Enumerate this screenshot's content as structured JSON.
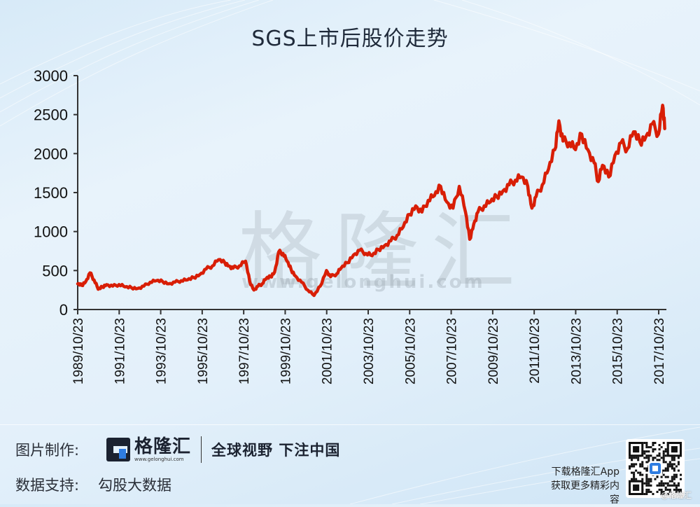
{
  "title": "SGS上市后股价走势",
  "watermark": {
    "text": "格隆汇",
    "url": "www.gelonghui.com"
  },
  "footer": {
    "made_by_label": "图片制作:",
    "brand_name": "格隆汇",
    "brand_url": "www.gelonghui.com",
    "slogan": "全球视野 下注中国",
    "data_label": "数据支持:",
    "data_source": "勾股大数据",
    "app_line1": "下载格隆汇App",
    "app_line2": "获取更多精彩内容",
    "credit": "@格隆汇",
    "qr_icon": "qr-code-icon"
  },
  "colors": {
    "line": "#d81e06",
    "axis": "#333333",
    "text": "#111111"
  },
  "chart_data": {
    "type": "line",
    "title": "SGS上市后股价走势",
    "xlabel": "",
    "ylabel": "",
    "ylim": [
      0,
      3000
    ],
    "yticks": [
      0,
      500,
      1000,
      1500,
      2000,
      2500,
      3000
    ],
    "xticks": [
      "1989/10/23",
      "1991/10/23",
      "1993/10/23",
      "1995/10/23",
      "1997/10/23",
      "1999/10/23",
      "2001/10/23",
      "2003/10/23",
      "2005/10/23",
      "2007/10/23",
      "2009/10/23",
      "2011/10/23",
      "2013/10/23",
      "2015/10/23",
      "2017/10/23"
    ],
    "grid": false,
    "legend": null,
    "series": [
      {
        "name": "SGS",
        "color": "#d81e06",
        "x": [
          1989.81,
          1990.0,
          1990.2,
          1990.4,
          1990.6,
          1990.8,
          1991.0,
          1991.2,
          1991.5,
          1991.8,
          1992.1,
          1992.4,
          1992.7,
          1993.0,
          1993.3,
          1993.6,
          1993.9,
          1994.2,
          1994.5,
          1994.8,
          1995.1,
          1995.4,
          1995.7,
          1996.0,
          1996.3,
          1996.6,
          1996.9,
          1997.1,
          1997.3,
          1997.6,
          1997.9,
          1998.1,
          1998.3,
          1998.5,
          1998.7,
          1998.9,
          1999.1,
          1999.3,
          1999.5,
          1999.7,
          1999.9,
          2000.1,
          2000.3,
          2000.6,
          2000.9,
          2001.2,
          2001.5,
          2001.8,
          2002.0,
          2002.3,
          2002.5,
          2002.8,
          2003.1,
          2003.4,
          2003.7,
          2004.0,
          2004.3,
          2004.6,
          2004.9,
          2005.2,
          2005.5,
          2005.8,
          2006.1,
          2006.4,
          2006.7,
          2007.0,
          2007.3,
          2007.6,
          2007.9,
          2008.2,
          2008.5,
          2008.7,
          2008.9,
          2009.1,
          2009.4,
          2009.7,
          2010.0,
          2010.3,
          2010.6,
          2010.9,
          2011.2,
          2011.5,
          2011.7,
          2011.9,
          2012.2,
          2012.5,
          2012.8,
          2013.0,
          2013.2,
          2013.5,
          2013.8,
          2014.1,
          2014.4,
          2014.7,
          2014.9,
          2015.1,
          2015.4,
          2015.7,
          2016.0,
          2016.3,
          2016.6,
          2016.9,
          2017.2,
          2017.5,
          2017.8,
          2018.0,
          2018.1
        ],
        "values": [
          330,
          310,
          360,
          470,
          380,
          260,
          290,
          320,
          300,
          320,
          290,
          280,
          270,
          300,
          350,
          370,
          360,
          330,
          350,
          370,
          380,
          410,
          450,
          520,
          560,
          640,
          600,
          560,
          530,
          560,
          620,
          360,
          250,
          300,
          330,
          400,
          420,
          480,
          740,
          720,
          620,
          510,
          430,
          350,
          250,
          180,
          300,
          500,
          420,
          460,
          530,
          600,
          700,
          760,
          720,
          690,
          770,
          820,
          880,
          950,
          1060,
          1220,
          1330,
          1250,
          1400,
          1460,
          1580,
          1380,
          1300,
          1580,
          1250,
          900,
          1100,
          1250,
          1330,
          1380,
          1450,
          1520,
          1600,
          1660,
          1700,
          1580,
          1300,
          1450,
          1600,
          1800,
          2050,
          2420,
          2160,
          2140,
          2050,
          2250,
          2050,
          1880,
          1640,
          1850,
          1700,
          1980,
          2140,
          2060,
          2280,
          2150,
          2220,
          2380,
          2250,
          2620,
          2320
        ]
      }
    ]
  }
}
